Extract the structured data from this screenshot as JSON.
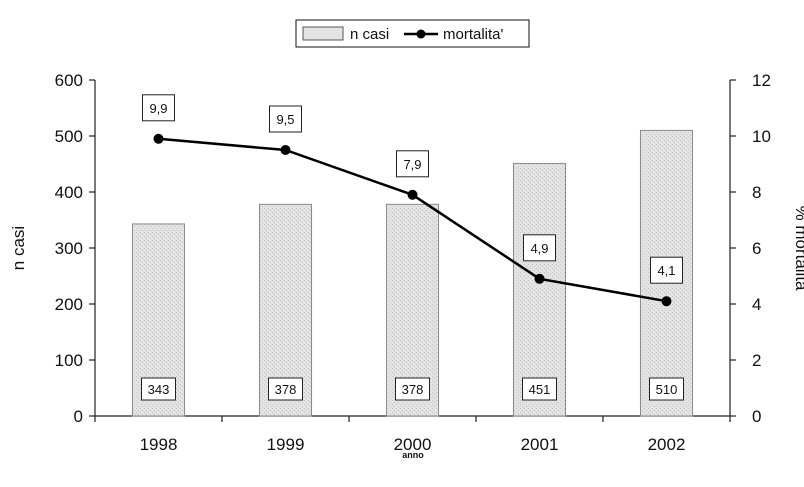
{
  "chart_data": {
    "type": "bar",
    "categories": [
      "1998",
      "1999",
      "2000",
      "2001",
      "2002"
    ],
    "series": [
      {
        "name": "n casi",
        "type": "bar",
        "axis": "left",
        "values": [
          343,
          378,
          378,
          451,
          510
        ],
        "labels": [
          "343",
          "378",
          "378",
          "451",
          "510"
        ]
      },
      {
        "name": "mortalita'",
        "type": "line",
        "axis": "right",
        "values": [
          9.9,
          9.5,
          7.9,
          4.9,
          4.1
        ],
        "labels": [
          "9,9",
          "9,5",
          "7,9",
          "4,9",
          "4,1"
        ]
      }
    ],
    "xlabel": "anno",
    "ylabel": "n casi",
    "y2label": "% mortalità",
    "ylim": [
      0,
      600
    ],
    "y2lim": [
      0,
      12
    ],
    "yticks": [
      "0",
      "100",
      "200",
      "300",
      "400",
      "500",
      "600"
    ],
    "y2ticks": [
      "0",
      "2",
      "4",
      "6",
      "8",
      "10",
      "12"
    ],
    "grid": false,
    "legend": {
      "position": "top-center",
      "entries": [
        "n casi",
        "mortalita'"
      ]
    },
    "colors": {
      "bar_fill": "#e3e3e3",
      "bar_stroke": "#8a8a8a",
      "line": "#000000"
    }
  }
}
